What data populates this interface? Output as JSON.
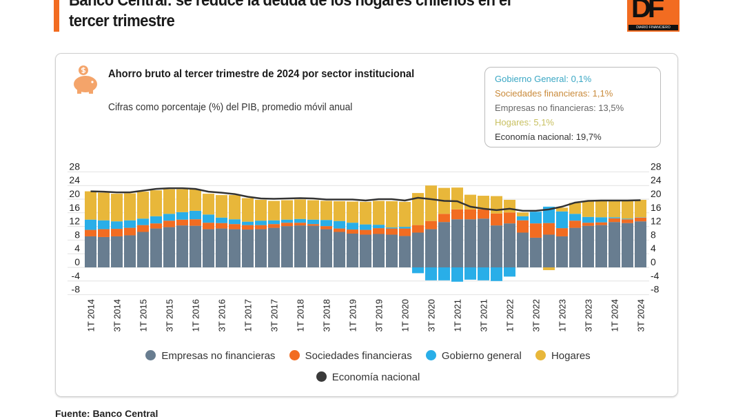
{
  "header": {
    "headline": "Banco Central: se reduce la deuda de los hogares chilenos en el tercer trimestre",
    "logo_text": "DF",
    "logo_subtext": "DIARIO FINANCIERO"
  },
  "callout": {
    "gobierno": "Gobierno General: 0,1%",
    "sociedades": "Sociedades financieras: 1,1%",
    "empresas": "Empresas no financieras: 13,5%",
    "hogares": "Hogares: 5,1%",
    "economia": "Economía nacional: 19,7%"
  },
  "footer": {
    "source": "Fuente: Banco Central"
  },
  "colors": {
    "empresas": "#687d90",
    "sociedades": "#f26c21",
    "gobierno": "#29aee8",
    "hogares": "#e8b73a",
    "economia": "#333333",
    "accent": "#f26c21"
  },
  "icons": {
    "title_icon": "piggy-bank-icon"
  },
  "chart_data": {
    "type": "bar",
    "stacked": true,
    "title": "Ahorro bruto al tercer trimestre de 2024 por sector institucional",
    "subtitle": "Cifras como porcentaje (%) del PIB, promedio móvil anual",
    "ylim": [
      -8,
      28
    ],
    "yticks": [
      28,
      24,
      20,
      16,
      12,
      8,
      4,
      0,
      -4,
      -8
    ],
    "grid": true,
    "legend_position": "bottom",
    "categories": [
      "1T 2014",
      "2T 2014",
      "3T 2014",
      "4T 2014",
      "1T 2015",
      "2T 2015",
      "3T 2015",
      "4T 2015",
      "1T 2016",
      "2T 2016",
      "3T 2016",
      "4T 2016",
      "1T 2017",
      "2T 2017",
      "3T 2017",
      "4T 2017",
      "1T 2018",
      "2T 2018",
      "3T 2018",
      "4T 2018",
      "1T 2019",
      "2T 2019",
      "3T 2019",
      "4T 2019",
      "1T 2020",
      "2T 2020",
      "3T 2020",
      "4T 2020",
      "1T 2021",
      "2T 2021",
      "3T 2021",
      "4T 2021",
      "1T 2022",
      "2T 2022",
      "3T 2022",
      "4T 2022",
      "1T 2023",
      "2T 2023",
      "3T 2023",
      "4T 2023",
      "1T 2024",
      "2T 2024",
      "3T 2024"
    ],
    "xtick_labels": [
      "1T 2014",
      "3T 2014",
      "1T 2015",
      "3T 2015",
      "1T 2016",
      "3T 2016",
      "1T 2017",
      "3T 2017",
      "1T 2018",
      "3T 2018",
      "1T 2019",
      "3T 2019",
      "1T 2020",
      "3T 2020",
      "1T 2021",
      "3T 2021",
      "1T 2022",
      "3T 2022",
      "1T 2023",
      "3T 2023",
      "1T 2024",
      "3T 2024"
    ],
    "series": [
      {
        "name": "Empresas no financieras",
        "type": "bar",
        "values": [
          9.1,
          8.9,
          9.1,
          9.4,
          10.4,
          11.4,
          11.8,
          12.3,
          12.2,
          11.2,
          11.4,
          11.2,
          11.1,
          11.2,
          11.6,
          12.1,
          12.3,
          12.2,
          11.2,
          10.4,
          9.9,
          9.6,
          9.8,
          9.6,
          9.2,
          10.2,
          11.2,
          13.3,
          14.1,
          14.1,
          14.3,
          12.3,
          12.9,
          10.2,
          8.7,
          9.6,
          9.1,
          11.6,
          12.2,
          12.4,
          13.3,
          13.0,
          13.5
        ]
      },
      {
        "name": "Sociedades financieras",
        "type": "bar",
        "values": [
          1.9,
          2.3,
          2.2,
          2.2,
          2.0,
          1.5,
          1.9,
          1.7,
          1.9,
          1.9,
          1.6,
          1.5,
          1.3,
          1.2,
          1.1,
          1.0,
          0.8,
          0.5,
          0.9,
          1.0,
          1.2,
          1.4,
          1.7,
          1.8,
          2.2,
          2.2,
          2.4,
          2.4,
          2.9,
          2.9,
          2.7,
          3.5,
          3.2,
          3.6,
          4.2,
          3.4,
          2.4,
          2.1,
          0.9,
          0.8,
          1.1,
          1.1,
          1.1
        ]
      },
      {
        "name": "Gobierno general",
        "type": "bar",
        "values": [
          3.0,
          2.6,
          2.2,
          2.2,
          1.9,
          2.1,
          2.0,
          2.2,
          2.5,
          2.4,
          1.6,
          1.4,
          1.0,
          1.3,
          1.1,
          0.9,
          1.1,
          1.3,
          1.8,
          2.2,
          2.0,
          1.6,
          1.0,
          0.3,
          0.5,
          -1.7,
          -3.8,
          -3.8,
          -4.2,
          -3.6,
          -3.8,
          -4.0,
          -2.7,
          1.2,
          3.4,
          4.8,
          4.9,
          2.0,
          1.7,
          1.5,
          0.3,
          0.2,
          0.1
        ]
      },
      {
        "name": "Hogares",
        "type": "bar",
        "values": [
          8.3,
          8.1,
          8.1,
          7.9,
          7.9,
          7.6,
          7.2,
          6.7,
          6.3,
          6.1,
          6.6,
          7.1,
          6.9,
          6.1,
          5.7,
          5.7,
          5.7,
          5.7,
          5.6,
          5.8,
          6.2,
          6.6,
          7.0,
          7.7,
          7.3,
          9.4,
          10.4,
          7.6,
          6.4,
          4.3,
          4.0,
          5.1,
          3.7,
          1.1,
          0.0,
          -0.8,
          1.1,
          3.2,
          4.7,
          4.9,
          5.1,
          5.4,
          5.1
        ]
      },
      {
        "name": "Economía nacional",
        "type": "line",
        "values": [
          22.3,
          22.2,
          22.0,
          22.0,
          22.5,
          23.0,
          23.2,
          23.2,
          23.0,
          22.2,
          21.9,
          21.5,
          20.7,
          20.2,
          20.1,
          20.2,
          20.3,
          20.2,
          19.9,
          19.9,
          19.9,
          19.6,
          20.0,
          20.0,
          19.6,
          20.4,
          20.0,
          19.5,
          19.4,
          17.8,
          17.2,
          16.8,
          17.2,
          16.6,
          16.6,
          17.0,
          17.8,
          19.0,
          19.5,
          19.6,
          19.6,
          19.6,
          19.7
        ]
      }
    ]
  }
}
